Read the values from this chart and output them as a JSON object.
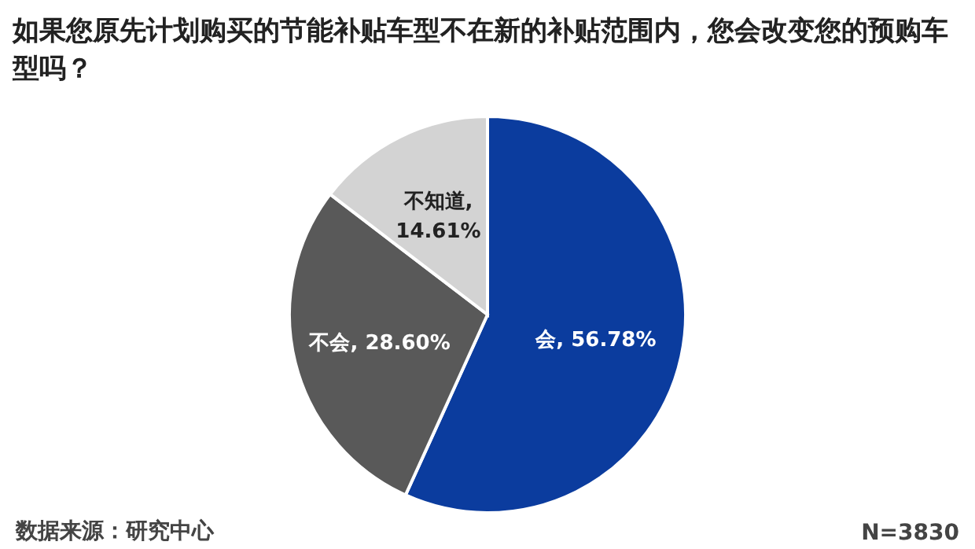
{
  "chart_data": {
    "type": "pie",
    "title": "如果您原先计划购买的节能补贴车型不在新的补贴范围内，您会改变您的预购车型吗？",
    "categories": [
      "会",
      "不会",
      "不知道"
    ],
    "values": [
      56.78,
      28.6,
      14.61
    ],
    "value_labels": [
      ", 56.78%",
      ", 28.60%",
      ", 14.61%"
    ],
    "colors": [
      "#0b3c9e",
      "#595959",
      "#d3d3d3"
    ],
    "annotations": [
      "数据来源：研究中心",
      "N=3830"
    ]
  }
}
